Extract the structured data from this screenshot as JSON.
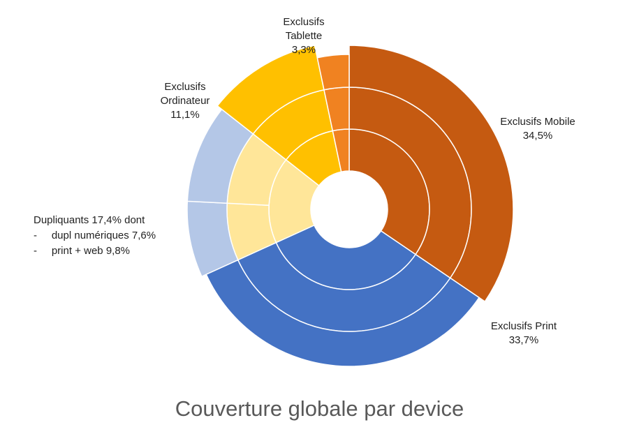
{
  "chart_data": {
    "type": "sunburst",
    "title": "Couverture globale par device",
    "segments": [
      {
        "name": "Exclusifs Mobile",
        "value": 34.5,
        "value_label": "34,5%",
        "color": "#c55a11"
      },
      {
        "name": "Exclusifs Print",
        "value": 33.7,
        "value_label": "33,7%",
        "color": "#4472c4"
      },
      {
        "name": "Dupliquants",
        "value": 17.4,
        "value_label": "17,4%",
        "connector": "dont",
        "color": "#ffe699",
        "outer_color": "#b4c7e7",
        "children": [
          {
            "name": "dupl numériques",
            "value": 7.6,
            "value_label": "7,6%"
          },
          {
            "name": "print + web",
            "value": 9.8,
            "value_label": "9,8%"
          }
        ]
      },
      {
        "name": "Exclusifs Ordinateur",
        "value": 11.1,
        "value_label": "11,1%",
        "color": "#ffc000"
      },
      {
        "name": "Exclusifs Tablette",
        "value": 3.3,
        "value_label": "3,3%",
        "color": "#f08221"
      }
    ]
  }
}
